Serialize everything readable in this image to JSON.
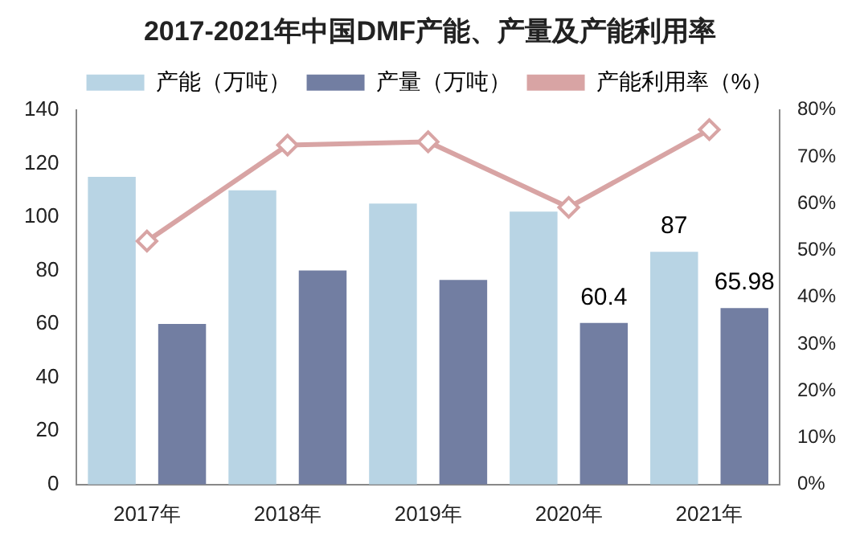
{
  "chart_data": {
    "type": "bar",
    "title": "2017-2021年中国DMF产能、产量及产能利用率",
    "categories": [
      "2017年",
      "2018年",
      "2019年",
      "2020年",
      "2021年"
    ],
    "series": [
      {
        "name": "产能（万吨）",
        "color": "#b8d4e4",
        "values": [
          115,
          110,
          105,
          102,
          87
        ],
        "value_labels": [
          null,
          null,
          null,
          null,
          "87"
        ]
      },
      {
        "name": "产量（万吨）",
        "color": "#727ea2",
        "values": [
          60,
          80,
          76.5,
          60.4,
          65.98
        ],
        "value_labels": [
          null,
          null,
          null,
          "60.4",
          "65.98"
        ]
      },
      {
        "name": "产能利用率（%）",
        "type": "line",
        "axis": "y2",
        "color": "#d8a4a4",
        "marker": "diamond",
        "values": [
          52,
          72.5,
          73.2,
          59.2,
          75.8
        ]
      }
    ],
    "ylim": [
      0,
      140
    ],
    "yticks": [
      0,
      20,
      40,
      60,
      80,
      100,
      120,
      140
    ],
    "y2lim": [
      0,
      80
    ],
    "y2ticks": [
      {
        "value": 0,
        "label": "0%"
      },
      {
        "value": 10,
        "label": "10%"
      },
      {
        "value": 20,
        "label": "20%"
      },
      {
        "value": 30,
        "label": "30%"
      },
      {
        "value": 40,
        "label": "40%"
      },
      {
        "value": 50,
        "label": "50%"
      },
      {
        "value": 60,
        "label": "60%"
      },
      {
        "value": 70,
        "label": "70%"
      },
      {
        "value": 80,
        "label": "80%"
      }
    ],
    "grid": false,
    "legend": "top"
  }
}
